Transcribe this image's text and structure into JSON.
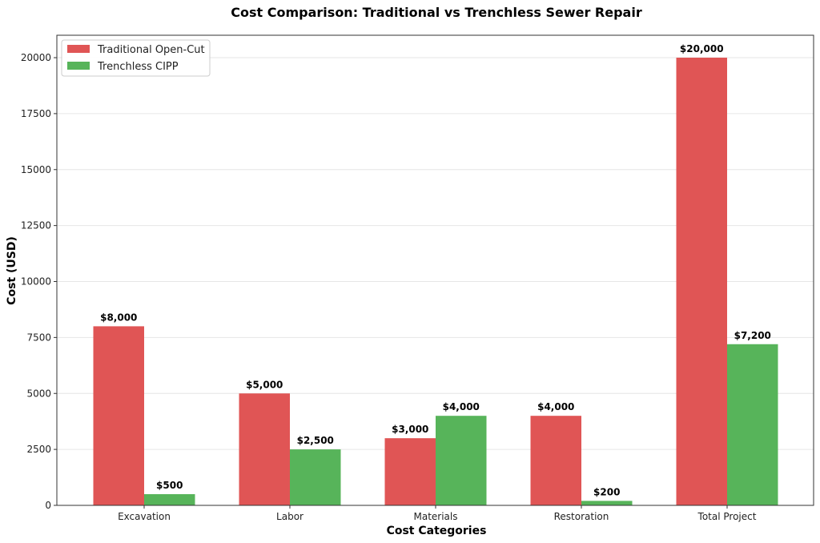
{
  "chart_data": {
    "type": "bar",
    "title": "Cost Comparison: Traditional vs Trenchless Sewer Repair",
    "xlabel": "Cost Categories",
    "ylabel": "Cost (USD)",
    "categories": [
      "Excavation",
      "Labor",
      "Materials",
      "Restoration",
      "Total Project"
    ],
    "series": [
      {
        "name": "Traditional Open-Cut",
        "color": "#e05555",
        "values": [
          8000,
          5000,
          3000,
          4000,
          20000
        ],
        "labels": [
          "$8,000",
          "$5,000",
          "$3,000",
          "$4,000",
          "$20,000"
        ]
      },
      {
        "name": "Trenchless CIPP",
        "color": "#57b45a",
        "values": [
          500,
          2500,
          4000,
          200,
          7200
        ],
        "labels": [
          "$500",
          "$2,500",
          "$4,000",
          "$200",
          "$7,200"
        ]
      }
    ],
    "ylim": [
      0,
      21000
    ],
    "yticks": [
      0,
      2500,
      5000,
      7500,
      10000,
      12500,
      15000,
      17500,
      20000
    ],
    "ytick_labels": [
      "0",
      "2500",
      "5000",
      "7500",
      "10000",
      "12500",
      "15000",
      "17500",
      "20000"
    ],
    "grid": "y",
    "legend_position": "top-left"
  }
}
